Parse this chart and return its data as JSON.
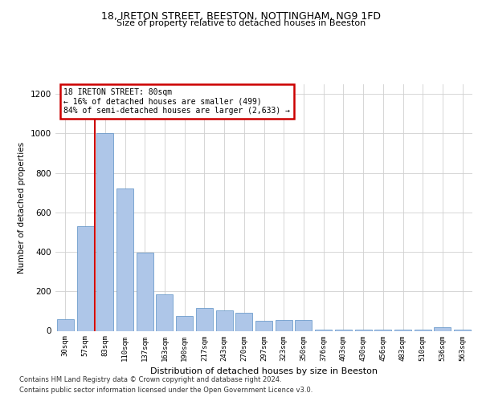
{
  "title1": "18, IRETON STREET, BEESTON, NOTTINGHAM, NG9 1FD",
  "title2": "Size of property relative to detached houses in Beeston",
  "xlabel": "Distribution of detached houses by size in Beeston",
  "ylabel": "Number of detached properties",
  "footer1": "Contains HM Land Registry data © Crown copyright and database right 2024.",
  "footer2": "Contains public sector information licensed under the Open Government Licence v3.0.",
  "annotation_title": "18 IRETON STREET: 80sqm",
  "annotation_line2": "← 16% of detached houses are smaller (499)",
  "annotation_line3": "84% of semi-detached houses are larger (2,633) →",
  "bar_color": "#aec6e8",
  "bar_edge_color": "#5a8fc4",
  "line_color": "#cc0000",
  "annotation_box_color": "#cc0000",
  "categories": [
    "30sqm",
    "57sqm",
    "83sqm",
    "110sqm",
    "137sqm",
    "163sqm",
    "190sqm",
    "217sqm",
    "243sqm",
    "270sqm",
    "297sqm",
    "323sqm",
    "350sqm",
    "376sqm",
    "403sqm",
    "430sqm",
    "456sqm",
    "483sqm",
    "510sqm",
    "536sqm",
    "563sqm"
  ],
  "values": [
    60,
    530,
    1000,
    720,
    395,
    185,
    75,
    115,
    105,
    90,
    50,
    55,
    55,
    8,
    8,
    5,
    5,
    5,
    5,
    18,
    5
  ],
  "ylim": [
    0,
    1250
  ],
  "yticks": [
    0,
    200,
    400,
    600,
    800,
    1000,
    1200
  ],
  "property_bar_index": 1,
  "bg_color": "#ffffff",
  "grid_color": "#d0d0d0"
}
